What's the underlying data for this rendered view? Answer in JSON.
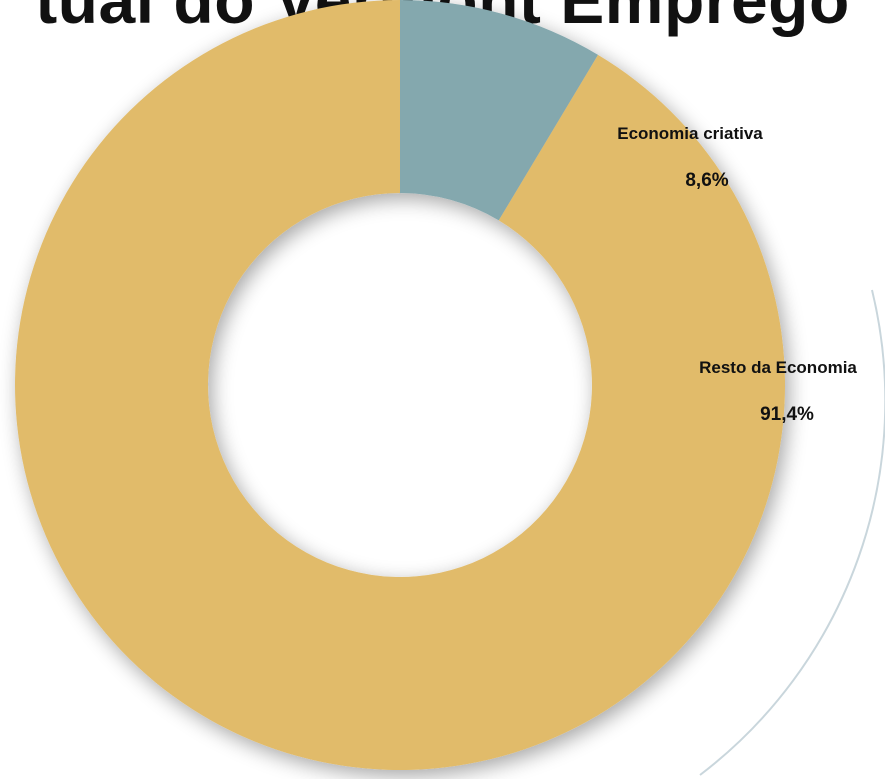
{
  "chart_data": {
    "type": "pie",
    "variant": "donut",
    "title": "tual do Vermont Emprego",
    "slices": [
      {
        "label": "Economia criativa",
        "value": 8.6,
        "value_label": "8,6%",
        "color": "#84a8ae"
      },
      {
        "label": "Resto da Economia",
        "value": 91.4,
        "value_label": "91,4%",
        "color": "#e1bb6b"
      }
    ],
    "start_angle": "12 o'clock",
    "direction": "clockwise",
    "legend": "none"
  }
}
